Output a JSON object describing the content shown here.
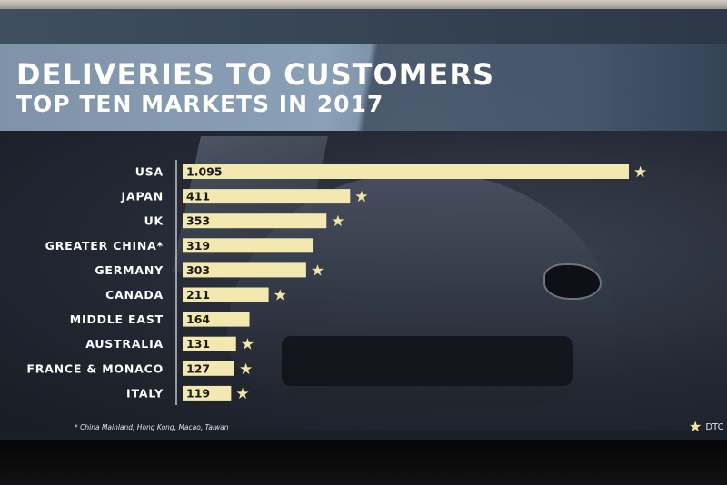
{
  "slide": {
    "title": "DELIVERIES TO CUSTOMERS",
    "subtitle": "TOP TEN MARKETS IN 2017",
    "footnote": "* China Mainland, Hong Kong, Macao, Taiwan",
    "legend_label": "DTC",
    "legend_icon": "star-icon"
  },
  "colors": {
    "bar": "#f3e9b0",
    "star": "#f2e6a6",
    "axis": "#e8e8e8"
  },
  "chart_data": {
    "type": "bar",
    "orientation": "horizontal",
    "title": "DELIVERIES TO CUSTOMERS",
    "subtitle": "TOP TEN MARKETS IN 2017",
    "categories": [
      "USA",
      "JAPAN",
      "UK",
      "GREATER CHINA*",
      "GERMANY",
      "CANADA",
      "MIDDLE EAST",
      "AUSTRALIA",
      "FRANCE & MONACO",
      "ITALY"
    ],
    "values": [
      1095,
      411,
      353,
      319,
      303,
      211,
      164,
      131,
      127,
      119
    ],
    "value_labels": [
      "1.095",
      "411",
      "353",
      "319",
      "303",
      "211",
      "164",
      "131",
      "127",
      "119"
    ],
    "dtc": [
      true,
      true,
      true,
      false,
      true,
      true,
      false,
      true,
      true,
      true
    ],
    "legend": "DTC",
    "xlim": [
      0,
      1095
    ],
    "grid": false
  }
}
